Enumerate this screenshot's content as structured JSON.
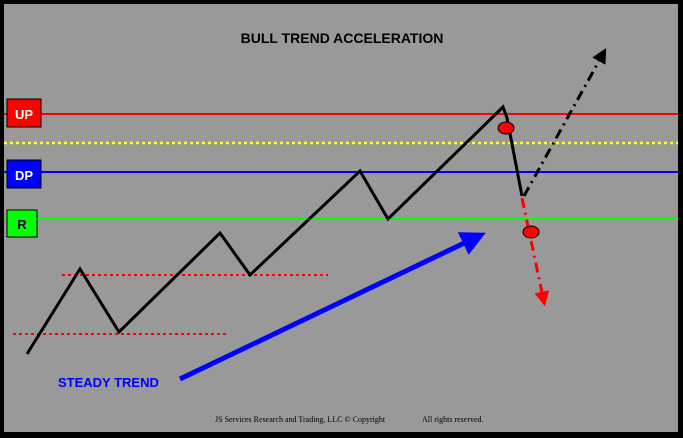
{
  "title": "BULL TREND ACCELERATION",
  "levels": {
    "up": {
      "label": "UP",
      "color": "#ff0000"
    },
    "mid": {
      "color": "#ffff33"
    },
    "dp": {
      "label": "DP",
      "color": "#0000ff"
    },
    "r": {
      "label": "R",
      "color": "#00ff00"
    }
  },
  "annotation": {
    "text": "STEADY TREND",
    "color": "#0000ff"
  },
  "footer": {
    "company": "JS Services Research  and Trading, LLC © Copyright",
    "rights": "All rights reserved."
  },
  "colors": {
    "background": "#999999",
    "frame": "#000000",
    "price": "#000000",
    "breakdown": "#ff0000",
    "marker": "#ff0000",
    "support": "#ff0000"
  }
}
